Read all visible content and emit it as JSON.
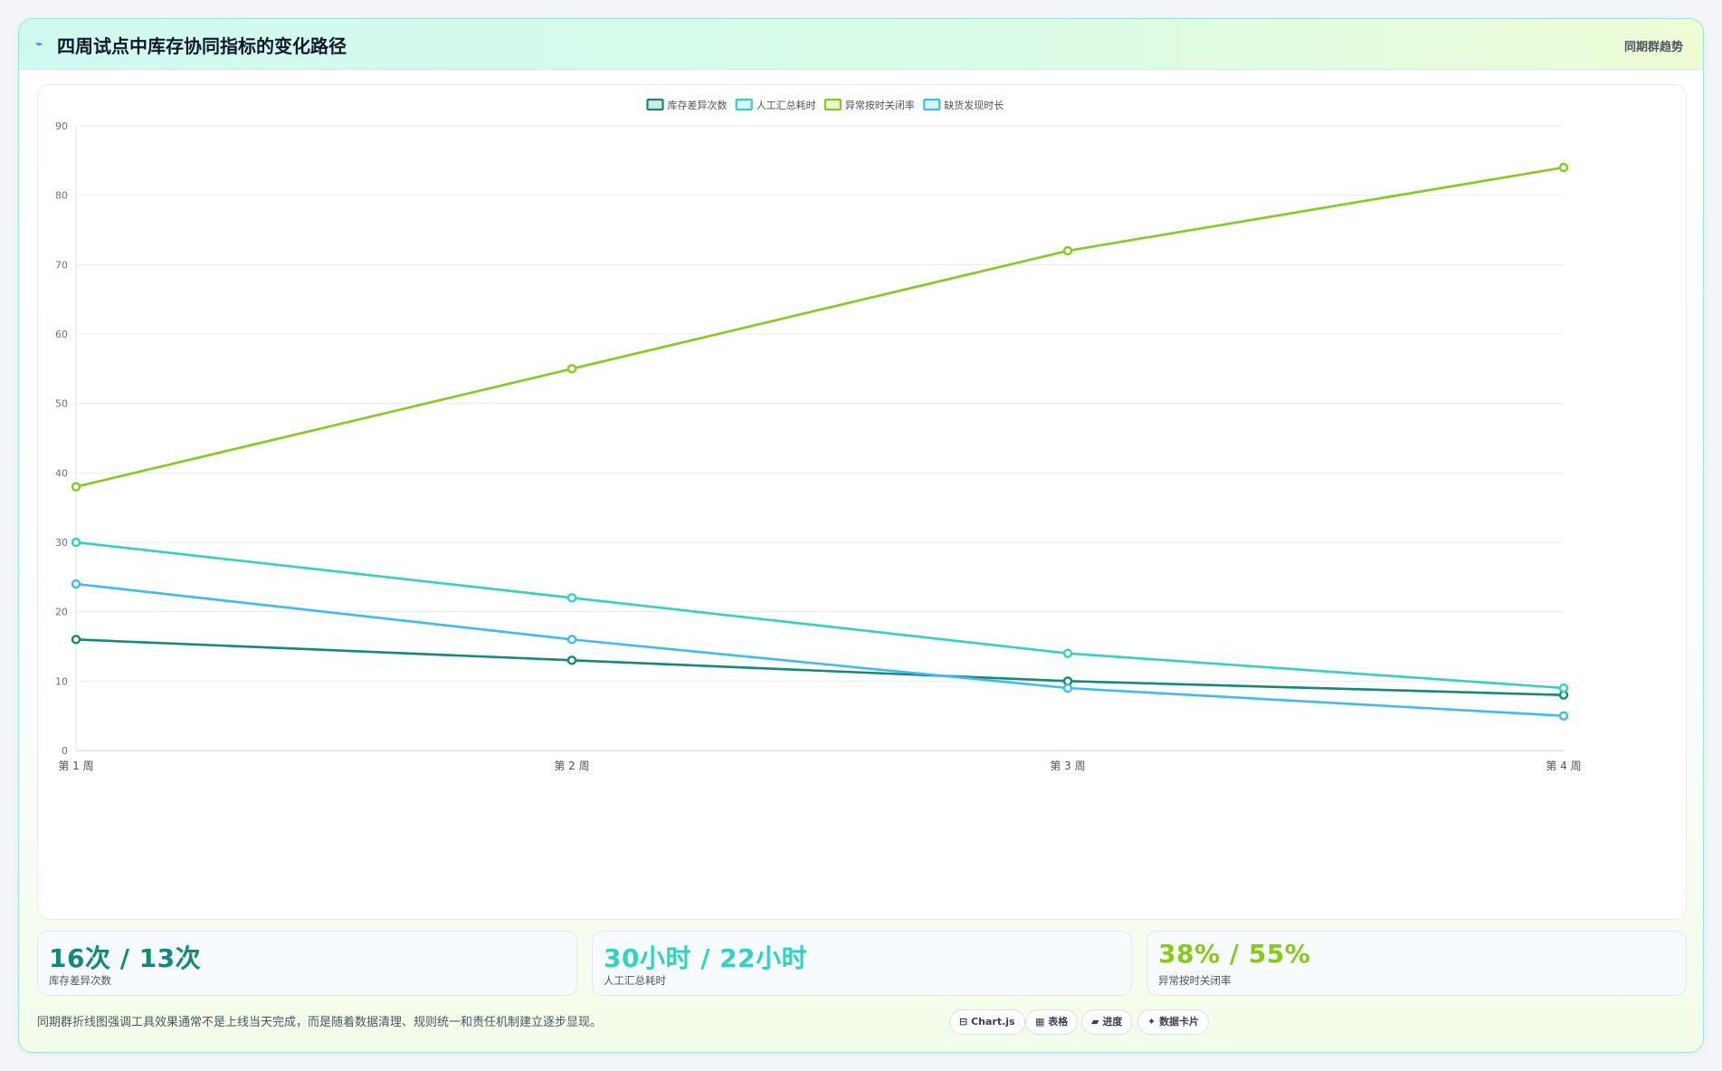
{
  "header": {
    "icon": "trend-icon",
    "icon_glyph": "⌁",
    "title": "四周试点中库存协同指标的变化路径",
    "tag": "同期群趋势"
  },
  "chart_data": {
    "type": "line",
    "categories": [
      "第 1 周",
      "第 2 周",
      "第 3 周",
      "第 4 周"
    ],
    "ylim": [
      0,
      90
    ],
    "yticks": [
      0,
      10,
      20,
      30,
      40,
      50,
      60,
      70,
      80,
      90
    ],
    "grid": true,
    "legend": "top-center",
    "series": [
      {
        "name": "库存差异次数",
        "color": "#0f8a7b",
        "values": [
          16,
          13,
          10,
          8
        ]
      },
      {
        "name": "人工汇总耗时",
        "color": "#2dd4bf",
        "values": [
          30,
          22,
          14,
          9
        ]
      },
      {
        "name": "异常按时关闭率",
        "color": "#84cc16",
        "values": [
          38,
          55,
          72,
          84
        ]
      },
      {
        "name": "缺货发现时长",
        "color": "#38bdf8",
        "values": [
          24,
          16,
          9,
          5
        ]
      }
    ]
  },
  "stats": [
    {
      "value": "16次 / 13次",
      "label": "库存差异次数",
      "color": "#0f8a7b"
    },
    {
      "value": "30小时 / 22小时",
      "label": "人工汇总耗时",
      "color": "#2dd4bf"
    },
    {
      "value": "38% / 55%",
      "label": "异常按时关闭率",
      "color": "#84cc16"
    }
  ],
  "footnote": "同期群折线图强调工具效果通常不是上线当天完成，而是随着数据清理、规则统一和责任机制建立逐步显现。",
  "chips": [
    {
      "icon": "chart-icon",
      "glyph": "⊟",
      "label": "Chart.js"
    },
    {
      "icon": "table-icon",
      "glyph": "▦",
      "label": "表格"
    },
    {
      "icon": "progress-icon",
      "glyph": "▰",
      "label": "进度"
    },
    {
      "icon": "sparkle-icon",
      "glyph": "✦",
      "label": "数据卡片"
    }
  ]
}
